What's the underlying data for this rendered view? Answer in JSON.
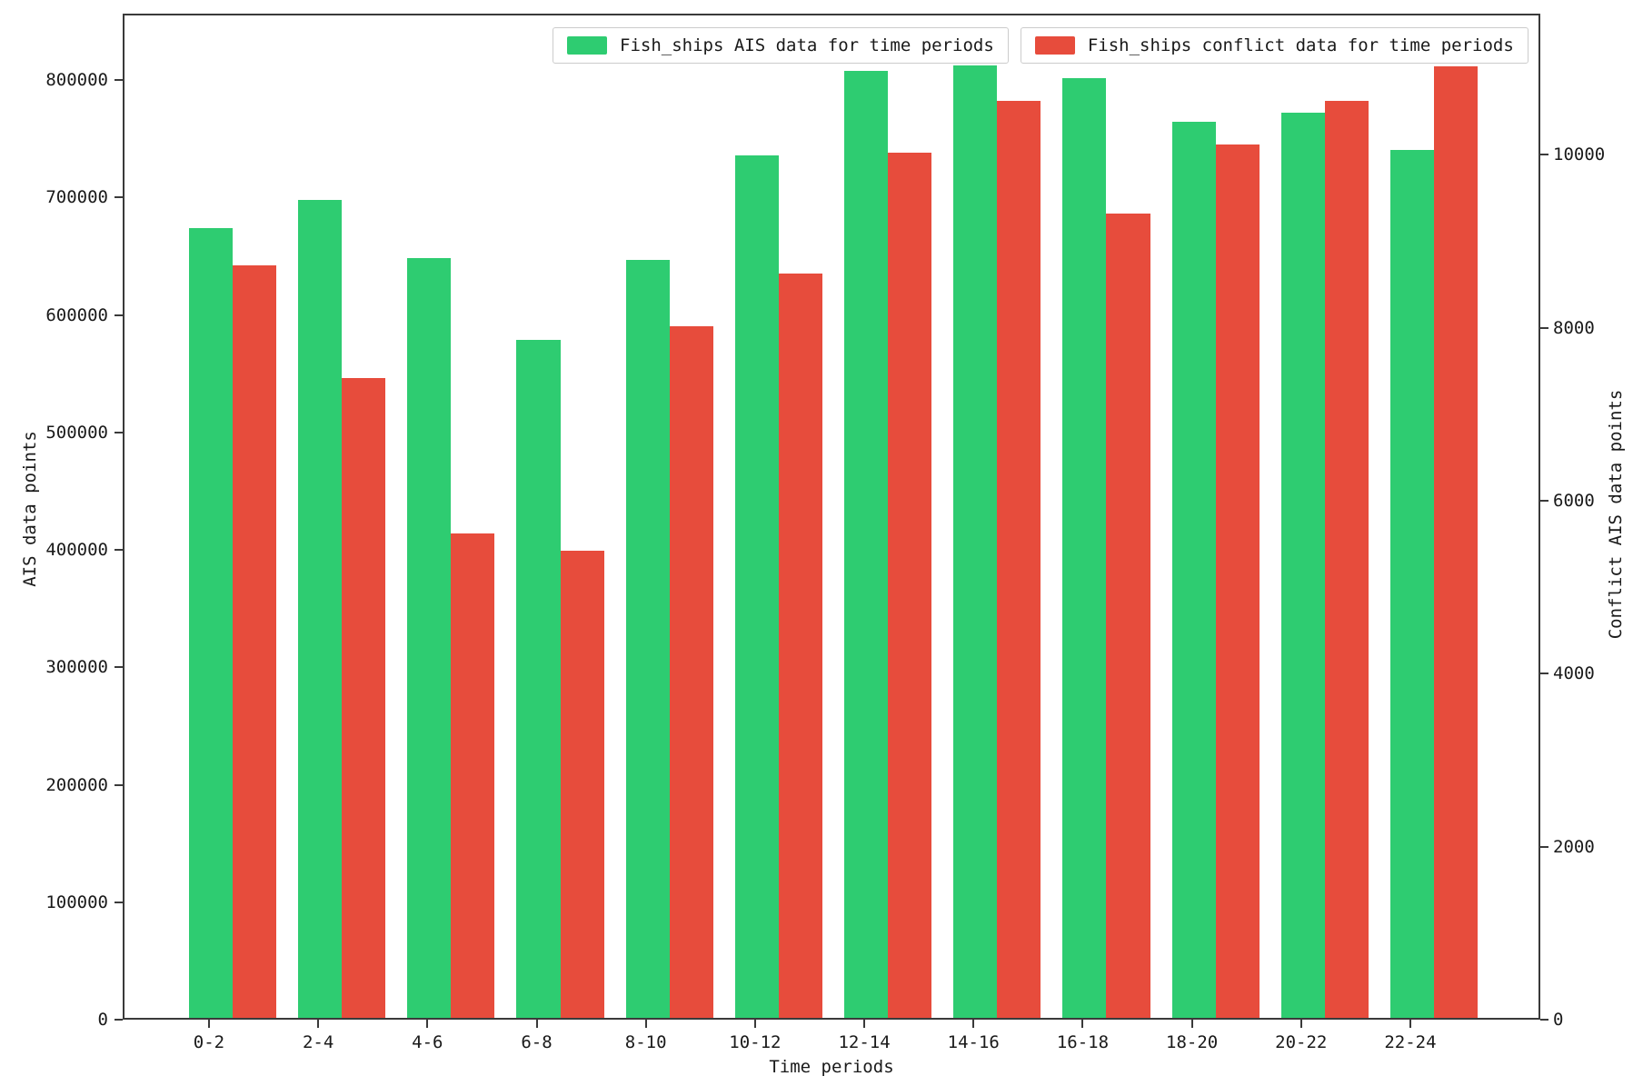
{
  "chart_data": {
    "type": "bar",
    "title": "",
    "xlabel": "Time periods",
    "ylabel_left": "AIS data points",
    "ylabel_right": "Conflict AIS data points",
    "categories": [
      "0-2",
      "2-4",
      "4-6",
      "6-8",
      "8-10",
      "10-12",
      "12-14",
      "14-16",
      "16-18",
      "18-20",
      "20-22",
      "22-24"
    ],
    "series": [
      {
        "name": "Fish_ships AIS data for time periods",
        "axis": "left",
        "color": "#2ecc71",
        "values": [
          672000,
          696000,
          647000,
          577000,
          645000,
          734000,
          806000,
          811000,
          800000,
          763000,
          771000,
          739000
        ]
      },
      {
        "name": "Fish_ships conflict data for time periods",
        "axis": "right",
        "color": "#e74c3c",
        "values": [
          8700,
          7400,
          5600,
          5400,
          8000,
          8600,
          10000,
          10600,
          9300,
          10100,
          10600,
          11000
        ]
      }
    ],
    "left_axis": {
      "ticks": [
        0,
        100000,
        200000,
        300000,
        400000,
        500000,
        600000,
        700000,
        800000
      ],
      "range": [
        0,
        856500
      ]
    },
    "right_axis": {
      "ticks": [
        0,
        2000,
        4000,
        6000,
        8000,
        10000
      ],
      "range": [
        0,
        11630
      ]
    },
    "x_range": [
      -0.79,
      12.19
    ],
    "bar_width": 0.4,
    "grid": false,
    "legend_position": "top-center"
  }
}
